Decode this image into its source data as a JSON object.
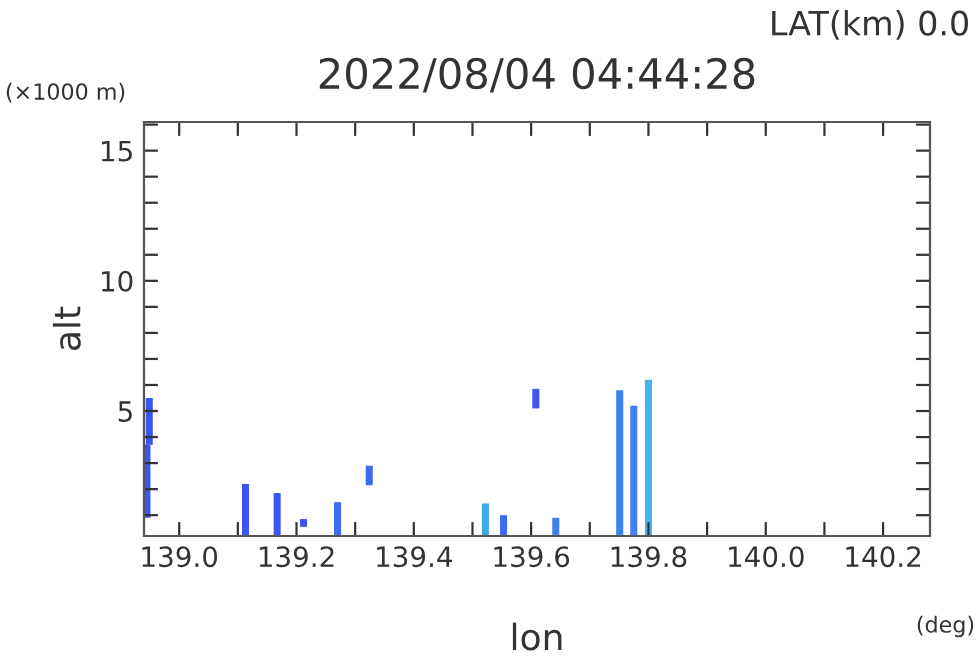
{
  "chart_data": {
    "type": "bar",
    "title": "2022/08/04 04:44:28",
    "xlabel": "lon",
    "ylabel": "alt",
    "annotations": [
      "LAT(km) 0.0",
      "(×1000 m)",
      "(deg)"
    ],
    "x": [
      138.945,
      138.949,
      139.113,
      139.167,
      139.212,
      139.27,
      139.324,
      139.522,
      139.553,
      139.608,
      139.642,
      139.751,
      139.775,
      139.8
    ],
    "base": [
      0.9,
      3.7,
      0.2,
      0.2,
      0.55,
      0.2,
      2.15,
      0.2,
      0.2,
      5.1,
      0.2,
      0.2,
      0.2,
      0.2
    ],
    "values": [
      2.8,
      1.8,
      2.0,
      1.65,
      0.3,
      1.3,
      0.75,
      1.25,
      0.8,
      0.75,
      0.7,
      5.6,
      5.0,
      6.0
    ],
    "colors": [
      "#3d55f0",
      "#3d55f0",
      "#3d55f0",
      "#3d55f0",
      "#3d55f0",
      "#3d6af0",
      "#3d6af0",
      "#40a8e8",
      "#3d6af0",
      "#3d55f0",
      "#3d80f0",
      "#3d80f0",
      "#3d80f0",
      "#45b4ec"
    ],
    "xlim": [
      138.94,
      140.28
    ],
    "ylim": [
      0.2,
      16.1
    ],
    "xticks": [
      {
        "value": 139.0,
        "label": "139.0"
      },
      {
        "value": 139.1,
        "label": null
      },
      {
        "value": 139.2,
        "label": "139.2"
      },
      {
        "value": 139.3,
        "label": null
      },
      {
        "value": 139.4,
        "label": "139.4"
      },
      {
        "value": 139.5,
        "label": null
      },
      {
        "value": 139.6,
        "label": "139.6"
      },
      {
        "value": 139.7,
        "label": null
      },
      {
        "value": 139.8,
        "label": "139.8"
      },
      {
        "value": 139.9,
        "label": null
      },
      {
        "value": 140.0,
        "label": "140.0"
      },
      {
        "value": 140.1,
        "label": null
      },
      {
        "value": 140.2,
        "label": "140.2"
      }
    ],
    "yticks": [
      {
        "value": 1,
        "label": null
      },
      {
        "value": 2,
        "label": null
      },
      {
        "value": 3,
        "label": null
      },
      {
        "value": 4,
        "label": null
      },
      5,
      {
        "value": 6,
        "label": null
      },
      {
        "value": 7,
        "label": null
      },
      {
        "value": 8,
        "label": null
      },
      {
        "value": 9,
        "label": null
      },
      10,
      {
        "value": 11,
        "label": null
      },
      {
        "value": 12,
        "label": null
      },
      {
        "value": 13,
        "label": null
      },
      {
        "value": 14,
        "label": null
      },
      15,
      {
        "value": 16,
        "label": null
      }
    ],
    "grid": false,
    "legend": false
  }
}
